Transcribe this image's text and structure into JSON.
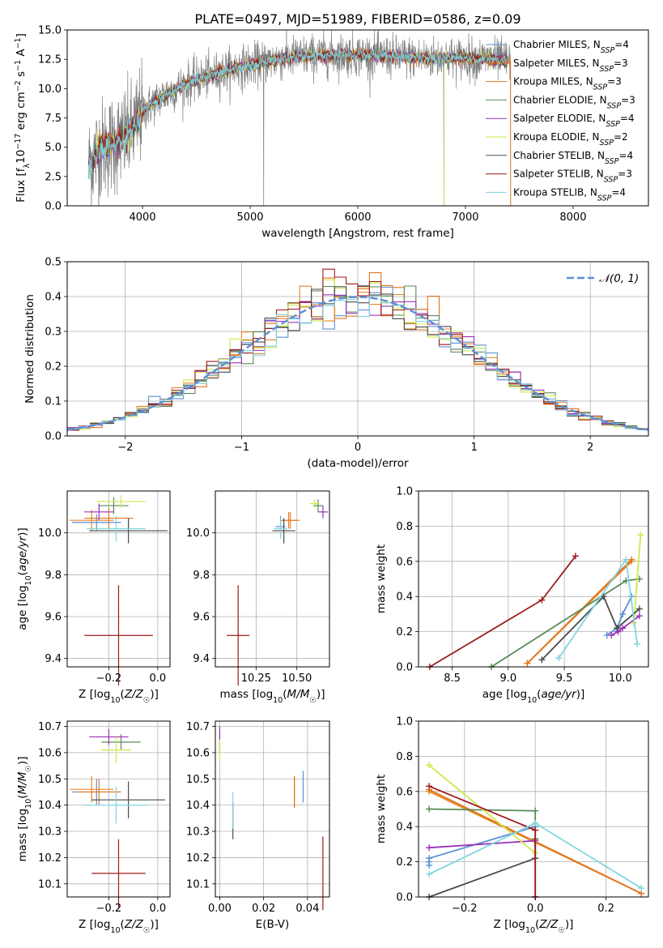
{
  "figure": {
    "title": "PLATE=0497, MJD=51989, FIBERID=0586, z=0.09"
  },
  "models": [
    {
      "id": "chabrier_miles",
      "name": "Chabrier MILES",
      "nssp": "4",
      "color": "#5b8fd6"
    },
    {
      "id": "salpeter_miles",
      "name": "Salpeter MILES",
      "nssp": "3",
      "color": "#e8862a"
    },
    {
      "id": "kroupa_miles",
      "name": "Kroupa MILES",
      "nssp": "3",
      "color": "#e2761c"
    },
    {
      "id": "chabrier_elodie",
      "name": "Chabrier ELODIE",
      "nssp": "3",
      "color": "#5a8a5a"
    },
    {
      "id": "salpeter_elodie",
      "name": "Salpeter ELODIE",
      "nssp": "4",
      "color": "#9b30b8"
    },
    {
      "id": "kroupa_elodie",
      "name": "Kroupa ELODIE",
      "nssp": "2",
      "color": "#cfe84a"
    },
    {
      "id": "chabrier_stelib",
      "name": "Chabrier STELIB",
      "nssp": "4",
      "color": "#4a4a4a"
    },
    {
      "id": "salpeter_stelib",
      "name": "Salpeter STELIB",
      "nssp": "3",
      "color": "#a01a1a"
    },
    {
      "id": "kroupa_stelib",
      "name": "Kroupa STELIB",
      "nssp": "4",
      "color": "#7fd6df"
    }
  ],
  "chart_data": [
    {
      "id": "spectrum",
      "type": "line",
      "xlabel": "wavelength [Angstrom, rest frame]",
      "ylabel": "Flux [f_λ 10^-17 erg cm^-2 s^-1 A^-1]",
      "xlim": [
        3300,
        8700
      ],
      "ylim": [
        0,
        15
      ],
      "xticks": [
        4000,
        5000,
        6000,
        7000,
        8000
      ],
      "yticks": [
        0.0,
        2.5,
        5.0,
        7.5,
        10.0,
        12.5,
        15.0
      ],
      "grid": false,
      "legend_position": "top-right",
      "continuum_model": {
        "x": [
          3500,
          3600,
          3700,
          3800,
          3900,
          4000,
          4100,
          4200,
          4400,
          4600,
          4800,
          5000,
          5200,
          5400,
          5600,
          5800,
          6000,
          6200,
          6400,
          6600,
          6800,
          7000,
          7200,
          7400
        ],
        "y": [
          3.5,
          4.8,
          5.2,
          5.6,
          6.3,
          8.0,
          8.8,
          9.4,
          10.4,
          11.0,
          11.6,
          12.0,
          12.4,
          12.7,
          12.8,
          12.9,
          12.9,
          12.8,
          12.7,
          12.6,
          12.6,
          12.6,
          12.5,
          12.4
        ]
      },
      "data_spike_x": [
        5125,
        6800,
        7420
      ]
    },
    {
      "id": "residuals",
      "type": "bar",
      "xlabel": "(data-model)/error",
      "ylabel": "Normed distribution",
      "xlim": [
        -2.5,
        2.5
      ],
      "ylim": [
        0,
        0.5
      ],
      "xticks": [
        -2,
        -1,
        0,
        1,
        2
      ],
      "yticks": [
        0.0,
        0.1,
        0.2,
        0.3,
        0.4,
        0.5
      ],
      "grid": true,
      "legend_position": "top-right",
      "reference_curve": {
        "label": "𝒩(0, 1)",
        "mean": 0,
        "sigma": 1
      },
      "bin_width": 0.1
    },
    {
      "id": "age_vs_Z",
      "type": "scatter",
      "xlabel": "Z [log10(Z/Z☉)]",
      "ylabel": "age  [log10(age/yr)]",
      "xlim": [
        -0.37,
        0.05
      ],
      "ylim": [
        9.36,
        10.2
      ],
      "xticks": [
        -0.2,
        0.0
      ],
      "yticks": [
        9.4,
        9.6,
        9.8,
        10.0
      ],
      "grid": true,
      "points": [
        {
          "model": "chabrier_miles",
          "x": -0.25,
          "y": 10.05,
          "xerr": 0.1,
          "yerr": 0.04
        },
        {
          "model": "salpeter_miles",
          "x": -0.27,
          "y": 10.06,
          "xerr": 0.09,
          "yerr": 0.05
        },
        {
          "model": "kroupa_miles",
          "x": -0.2,
          "y": 10.07,
          "xerr": 0.1,
          "yerr": 0.05
        },
        {
          "model": "chabrier_elodie",
          "x": -0.18,
          "y": 10.13,
          "xerr": 0.06,
          "yerr": 0.04
        },
        {
          "model": "salpeter_elodie",
          "x": -0.24,
          "y": 10.1,
          "xerr": 0.06,
          "yerr": 0.04
        },
        {
          "model": "kroupa_elodie",
          "x": -0.15,
          "y": 10.15,
          "xerr": 0.1,
          "yerr": 0.03
        },
        {
          "model": "chabrier_stelib",
          "x": -0.12,
          "y": 10.01,
          "xerr": 0.16,
          "yerr": 0.06
        },
        {
          "model": "salpeter_stelib",
          "x": -0.16,
          "y": 9.51,
          "xerr": 0.14,
          "yerr": 0.24
        },
        {
          "model": "kroupa_stelib",
          "x": -0.17,
          "y": 10.02,
          "xerr": 0.12,
          "yerr": 0.06
        }
      ]
    },
    {
      "id": "age_vs_mass",
      "type": "scatter",
      "xlabel": "mass [log10(M/M☉)]",
      "ylabel": "",
      "xlim": [
        10.0,
        10.7
      ],
      "ylim": [
        9.36,
        10.2
      ],
      "xticks": [
        10.25,
        10.5
      ],
      "yticks": [
        9.4,
        9.6,
        9.8,
        10.0
      ],
      "grid": true,
      "points": [
        {
          "model": "chabrier_miles",
          "x": 10.4,
          "y": 10.03,
          "xerr": 0.03,
          "yerr": 0.05
        },
        {
          "model": "salpeter_miles",
          "x": 10.46,
          "y": 10.06,
          "xerr": 0.06,
          "yerr": 0.04
        },
        {
          "model": "kroupa_miles",
          "x": 10.45,
          "y": 10.06,
          "xerr": 0.05,
          "yerr": 0.04
        },
        {
          "model": "chabrier_elodie",
          "x": 10.63,
          "y": 10.13,
          "xerr": 0.03,
          "yerr": 0.03
        },
        {
          "model": "salpeter_elodie",
          "x": 10.66,
          "y": 10.1,
          "xerr": 0.03,
          "yerr": 0.03
        },
        {
          "model": "kroupa_elodie",
          "x": 10.61,
          "y": 10.14,
          "xerr": 0.03,
          "yerr": 0.02
        },
        {
          "model": "chabrier_stelib",
          "x": 10.42,
          "y": 10.01,
          "xerr": 0.07,
          "yerr": 0.06
        },
        {
          "model": "salpeter_stelib",
          "x": 10.14,
          "y": 9.51,
          "xerr": 0.07,
          "yerr": 0.24
        },
        {
          "model": "kroupa_stelib",
          "x": 10.4,
          "y": 10.02,
          "xerr": 0.04,
          "yerr": 0.05
        }
      ]
    },
    {
      "id": "weight_vs_age",
      "type": "line",
      "xlabel": "age  [log10(age/yr)]",
      "ylabel": "mass weight",
      "xlim": [
        8.2,
        10.25
      ],
      "ylim": [
        0,
        1
      ],
      "xticks": [
        8.5,
        9.0,
        9.5,
        10.0
      ],
      "yticks": [
        0.0,
        0.2,
        0.4,
        0.6,
        0.8,
        1.0
      ],
      "grid": true,
      "series": [
        {
          "model": "chabrier_miles",
          "x": [
            9.88,
            9.97,
            10.02,
            10.1
          ],
          "y": [
            0.18,
            0.22,
            0.3,
            0.4
          ]
        },
        {
          "model": "salpeter_miles",
          "x": [
            9.17,
            10.1
          ],
          "y": [
            0.02,
            0.6
          ]
        },
        {
          "model": "kroupa_miles",
          "x": [
            9.17,
            10.1
          ],
          "y": [
            0.02,
            0.61
          ]
        },
        {
          "model": "chabrier_elodie",
          "x": [
            8.85,
            10.05,
            10.17
          ],
          "y": [
            0.0,
            0.49,
            0.5
          ]
        },
        {
          "model": "salpeter_elodie",
          "x": [
            9.92,
            9.98,
            10.02,
            10.17
          ],
          "y": [
            0.18,
            0.2,
            0.22,
            0.29
          ]
        },
        {
          "model": "kroupa_elodie",
          "x": [
            10.12,
            10.18
          ],
          "y": [
            0.25,
            0.75
          ]
        },
        {
          "model": "chabrier_stelib",
          "x": [
            9.3,
            9.85,
            9.97,
            10.17
          ],
          "y": [
            0.04,
            0.4,
            0.22,
            0.33
          ]
        },
        {
          "model": "salpeter_stelib",
          "x": [
            8.3,
            9.3,
            9.6
          ],
          "y": [
            0.0,
            0.38,
            0.63
          ]
        },
        {
          "model": "kroupa_stelib",
          "x": [
            9.45,
            10.05,
            10.15
          ],
          "y": [
            0.05,
            0.61,
            0.13
          ]
        }
      ]
    },
    {
      "id": "mass_vs_Z",
      "type": "scatter",
      "xlabel": "Z [log10(Z/Z☉)]",
      "ylabel": "mass [log10(M/M☉)]",
      "xlim": [
        -0.37,
        0.05
      ],
      "ylim": [
        10.05,
        10.72
      ],
      "xticks": [
        -0.2,
        0.0
      ],
      "yticks": [
        10.1,
        10.2,
        10.3,
        10.4,
        10.5,
        10.6,
        10.7
      ],
      "grid": true,
      "points": [
        {
          "model": "chabrier_miles",
          "x": -0.25,
          "y": 10.45,
          "xerr": 0.1,
          "yerr": 0.05
        },
        {
          "model": "salpeter_miles",
          "x": -0.27,
          "y": 10.46,
          "xerr": 0.09,
          "yerr": 0.05
        },
        {
          "model": "kroupa_miles",
          "x": -0.24,
          "y": 10.45,
          "xerr": 0.09,
          "yerr": 0.05
        },
        {
          "model": "chabrier_elodie",
          "x": -0.15,
          "y": 10.64,
          "xerr": 0.08,
          "yerr": 0.03
        },
        {
          "model": "salpeter_elodie",
          "x": -0.2,
          "y": 10.66,
          "xerr": 0.08,
          "yerr": 0.03
        },
        {
          "model": "kroupa_elodie",
          "x": -0.17,
          "y": 10.61,
          "xerr": 0.06,
          "yerr": 0.05
        },
        {
          "model": "chabrier_stelib",
          "x": -0.12,
          "y": 10.42,
          "xerr": 0.15,
          "yerr": 0.07
        },
        {
          "model": "salpeter_stelib",
          "x": -0.16,
          "y": 10.14,
          "xerr": 0.11,
          "yerr": 0.13
        },
        {
          "model": "kroupa_stelib",
          "x": -0.17,
          "y": 10.4,
          "xerr": 0.13,
          "yerr": 0.07
        }
      ]
    },
    {
      "id": "mass_vs_ebv",
      "type": "scatter",
      "xlabel": "E(B-V)",
      "ylabel": "",
      "xlim": [
        -0.002,
        0.05
      ],
      "ylim": [
        10.05,
        10.72
      ],
      "xticks": [
        0.0,
        0.02,
        0.04
      ],
      "yticks": [
        10.1,
        10.2,
        10.3,
        10.4,
        10.5,
        10.6,
        10.7
      ],
      "grid": true,
      "points": [
        {
          "model": "chabrier_miles",
          "x": 0.038,
          "y": 10.47,
          "yerr": 0.06
        },
        {
          "model": "salpeter_miles",
          "x": 0.034,
          "y": 10.45,
          "yerr": 0.06
        },
        {
          "model": "kroupa_miles",
          "x": 0.034,
          "y": 10.45,
          "yerr": 0.06
        },
        {
          "model": "chabrier_elodie",
          "x": 0.0,
          "y": 10.64,
          "yerr": 0.04
        },
        {
          "model": "salpeter_elodie",
          "x": 0.0,
          "y": 10.66,
          "yerr": 0.04
        },
        {
          "model": "kroupa_elodie",
          "x": 0.0,
          "y": 10.61,
          "yerr": 0.04
        },
        {
          "model": "chabrier_stelib",
          "x": 0.006,
          "y": 10.34,
          "yerr": 0.07
        },
        {
          "model": "salpeter_stelib",
          "x": 0.047,
          "y": 10.14,
          "yerr": 0.14
        },
        {
          "model": "kroupa_stelib",
          "x": 0.006,
          "y": 10.38,
          "yerr": 0.07
        }
      ]
    },
    {
      "id": "weight_vs_Z",
      "type": "line",
      "xlabel": "Z [log10(Z/Z☉)]",
      "ylabel": "mass weight",
      "xlim": [
        -0.33,
        0.32
      ],
      "ylim": [
        0,
        1
      ],
      "xticks": [
        -0.2,
        0.0,
        0.2
      ],
      "yticks": [
        0.0,
        0.2,
        0.4,
        0.6,
        0.8,
        1.0
      ],
      "grid": true,
      "series": [
        {
          "model": "chabrier_miles",
          "x": [
            -0.3,
            -0.3,
            -0.3,
            0.0
          ],
          "y": [
            0.18,
            0.2,
            0.22,
            0.4
          ]
        },
        {
          "model": "salpeter_miles",
          "x": [
            -0.3,
            0.3
          ],
          "y": [
            0.6,
            0.02
          ]
        },
        {
          "model": "kroupa_miles",
          "x": [
            -0.3,
            0.3
          ],
          "y": [
            0.61,
            0.02
          ]
        },
        {
          "model": "chabrier_elodie",
          "x": [
            -0.3,
            0.0,
            0.0
          ],
          "y": [
            0.5,
            0.49,
            0.0
          ]
        },
        {
          "model": "salpeter_elodie",
          "x": [
            -0.3,
            0.0
          ],
          "y": [
            0.28,
            0.32
          ]
        },
        {
          "model": "kroupa_elodie",
          "x": [
            -0.3,
            0.0
          ],
          "y": [
            0.75,
            0.25
          ]
        },
        {
          "model": "chabrier_stelib",
          "x": [
            -0.3,
            0.0,
            0.0
          ],
          "y": [
            0.0,
            0.22,
            0.33
          ]
        },
        {
          "model": "salpeter_stelib",
          "x": [
            -0.3,
            0.0,
            0.0
          ],
          "y": [
            0.63,
            0.38,
            0.0
          ]
        },
        {
          "model": "kroupa_stelib",
          "x": [
            -0.3,
            0.0,
            0.3
          ],
          "y": [
            0.13,
            0.42,
            0.05
          ]
        }
      ]
    }
  ]
}
